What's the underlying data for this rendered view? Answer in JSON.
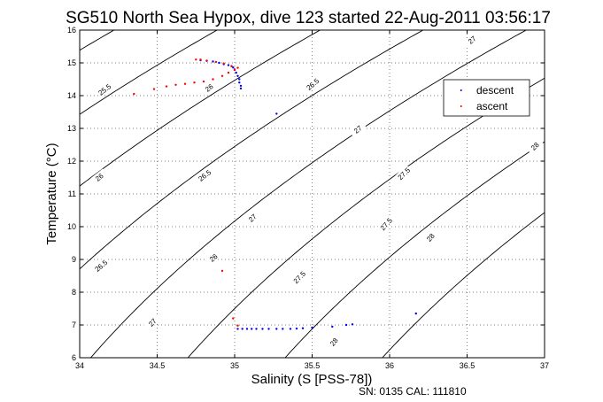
{
  "chart_data": {
    "type": "scatter",
    "title": "SG510 North Sea Hypox, dive 123 started 22-Aug-2011 03:56:17",
    "xlabel": "Salinity (S [PSS-78])",
    "ylabel": "Temperature (°C)",
    "xlim": [
      34,
      37
    ],
    "ylim": [
      6,
      16
    ],
    "x_ticks": [
      "34",
      "34.5",
      "35",
      "35.5",
      "36",
      "36.5",
      "37"
    ],
    "y_ticks": [
      "6",
      "7",
      "8",
      "9",
      "10",
      "11",
      "12",
      "13",
      "14",
      "15",
      "16"
    ],
    "grid": true,
    "legend_position": "upper-right",
    "colors": {
      "descent": "#0000ff",
      "ascent": "#ff0000",
      "contour": "#000000"
    },
    "series": [
      {
        "name": "descent",
        "points": [
          [
            34.78,
            15.08
          ],
          [
            34.82,
            15.06
          ],
          [
            34.86,
            15.04
          ],
          [
            34.9,
            15.0
          ],
          [
            34.93,
            14.96
          ],
          [
            34.96,
            14.93
          ],
          [
            34.98,
            14.9
          ],
          [
            34.99,
            14.86
          ],
          [
            35.0,
            14.8
          ],
          [
            35.01,
            14.7
          ],
          [
            35.02,
            14.6
          ],
          [
            35.03,
            14.5
          ],
          [
            35.03,
            14.4
          ],
          [
            35.04,
            14.3
          ],
          [
            35.04,
            14.22
          ],
          [
            35.27,
            13.45
          ],
          [
            35.02,
            6.88
          ],
          [
            35.05,
            6.88
          ],
          [
            35.08,
            6.88
          ],
          [
            35.11,
            6.88
          ],
          [
            35.14,
            6.88
          ],
          [
            35.18,
            6.88
          ],
          [
            35.22,
            6.88
          ],
          [
            35.27,
            6.88
          ],
          [
            35.31,
            6.88
          ],
          [
            35.36,
            6.88
          ],
          [
            35.4,
            6.89
          ],
          [
            35.44,
            6.9
          ],
          [
            35.5,
            6.92
          ],
          [
            35.63,
            6.95
          ],
          [
            35.72,
            7.0
          ],
          [
            35.76,
            7.02
          ],
          [
            36.17,
            7.35
          ]
        ]
      },
      {
        "name": "ascent",
        "points": [
          [
            34.35,
            14.05
          ],
          [
            34.48,
            14.2
          ],
          [
            34.56,
            14.28
          ],
          [
            34.62,
            14.33
          ],
          [
            34.68,
            14.36
          ],
          [
            34.74,
            14.4
          ],
          [
            34.8,
            14.43
          ],
          [
            34.86,
            14.5
          ],
          [
            34.92,
            14.6
          ],
          [
            34.96,
            14.7
          ],
          [
            35.0,
            14.78
          ],
          [
            35.02,
            14.85
          ],
          [
            34.98,
            14.9
          ],
          [
            34.93,
            14.98
          ],
          [
            34.88,
            15.03
          ],
          [
            34.82,
            15.07
          ],
          [
            34.78,
            15.1
          ],
          [
            34.75,
            15.1
          ],
          [
            34.92,
            8.65
          ],
          [
            34.99,
            7.2
          ],
          [
            35.02,
            6.98
          ]
        ]
      }
    ],
    "contour_labels": [
      "25.5",
      "26",
      "26",
      "26.5",
      "27",
      "26",
      "26.5",
      "27",
      "27.5",
      "26.5",
      "27",
      "27.5",
      "28",
      "27",
      "27.5",
      "28",
      "28"
    ],
    "annotation": "SN: 0135  CAL: 111810"
  }
}
